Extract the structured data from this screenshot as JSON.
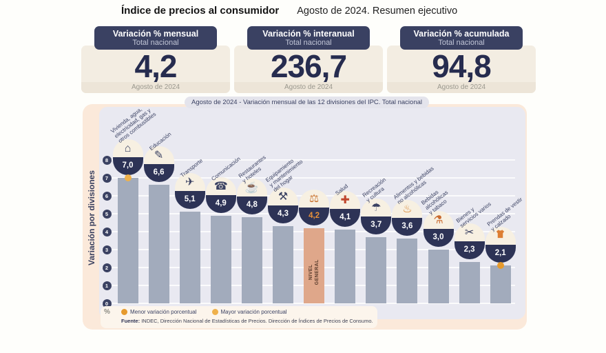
{
  "header": {
    "title": "Índice de precios al consumidor",
    "subtitle": "Agosto de 2024. Resumen ejecutivo"
  },
  "stat_cards": [
    {
      "title": "Variación % mensual",
      "subtitle": "Total nacional",
      "value": "4,2",
      "period": "Agosto de 2024"
    },
    {
      "title": "Variación % interanual",
      "subtitle": "Total nacional",
      "value": "236,7",
      "period": "Agosto de 2024"
    },
    {
      "title": "Variación % acumulada",
      "subtitle": "Total nacional",
      "value": "94,8",
      "period": "Agosto de 2024"
    }
  ],
  "chart": {
    "title": "Agosto de 2024 - Variación mensual de las 12 divisiones del IPC. Total nacional",
    "y_axis_label": "Variación por divisiones",
    "unit_label": "%",
    "legend": [
      {
        "label": "Menor variación porcentual",
        "color": "#E69A2D"
      },
      {
        "label": "Mayor variación porcentual",
        "color": "#EFB14B"
      }
    ],
    "source_label": "Fuente:",
    "source_text": "INDEC, Dirección Nacional de Estadísticas de Precios. Dirección de Índices de Precios de Consumo."
  },
  "chart_data": {
    "type": "bar",
    "title": "Agosto de 2024 - Variación mensual de las 12 divisiones del IPC. Total nacional",
    "ylabel": "Variación por divisiones",
    "unit": "%",
    "ylim": [
      0,
      8
    ],
    "yticks": [
      0,
      1,
      2,
      3,
      4,
      5,
      6,
      7,
      8
    ],
    "grid": true,
    "legend_position": "bottom",
    "bar_color": "#A2ABBC",
    "highlight_color": "#DFA78A",
    "highlight_index": 6,
    "highlight_bar_text": "NIVEL\nGENERAL",
    "categories": [
      "Vivienda, agua, electricidad, gas y otros combustibles",
      "Educación",
      "Transporte",
      "Comunicación",
      "Restaurantes y hoteles",
      "Equipamiento y mantenimiento del hogar",
      "Nivel general",
      "Salud",
      "Recreación y cultura",
      "Alimentos y bebidas no alcohólicas",
      "Bebidas alcohólicas y tabaco",
      "Bienes y servicios varios",
      "Prendas de vestir y calzado"
    ],
    "values": [
      7.0,
      6.6,
      5.1,
      4.9,
      4.8,
      4.3,
      4.2,
      4.1,
      3.7,
      3.6,
      3.0,
      2.3,
      2.1
    ],
    "value_labels": [
      "7,0",
      "6,6",
      "5,1",
      "4,9",
      "4,8",
      "4,3",
      "4,2",
      "4,1",
      "3,7",
      "3,6",
      "3,0",
      "2,3",
      "2,1"
    ],
    "display_labels": [
      "Vivienda, agua,\nelectricidad, gas y\notros combustibles",
      "Educación",
      "Transporte",
      "Comunicación",
      "Restaurantes\ny hoteles",
      "Equipamiento\ny mantenimiento\ndel hogar",
      "",
      "Salud",
      "Recreación\ny cultura",
      "Alimentos y bebidas\nno alcohólicas",
      "Bebidas\nalcohólicas\ny tabaco",
      "Bienes y\nservicios varios",
      "Prendas de vestir\ny calzado"
    ],
    "icons": [
      "housing-utilities-icon",
      "education-icon",
      "transport-icon",
      "communication-icon",
      "restaurants-hotels-icon",
      "home-equipment-icon",
      "general-level-basket-icon",
      "health-icon",
      "recreation-icon",
      "food-beverages-icon",
      "alcohol-tobacco-icon",
      "goods-services-icon",
      "clothing-icon"
    ],
    "icon_glyphs": [
      "⌂",
      "✎",
      "✈",
      "☎",
      "☕",
      "⚒",
      "⚖",
      "✚",
      "☂",
      "♨",
      "⚗",
      "✂",
      ""
    ],
    "icon_colors": [
      "#3A4162",
      "#3A4162",
      "#3A4162",
      "#3A4162",
      "#3A4162",
      "#3A4162",
      "#C9722E",
      "#C0472F",
      "#3A4162",
      "#D8832E",
      "#C96A2E",
      "#3A4162",
      "#DD7E33"
    ],
    "markers": [
      {
        "index": 0,
        "legend": "Mayor variación porcentual",
        "color": "#EFB14B"
      },
      {
        "index": 12,
        "legend": "Menor variación porcentual",
        "color": "#E69A2D"
      }
    ]
  }
}
